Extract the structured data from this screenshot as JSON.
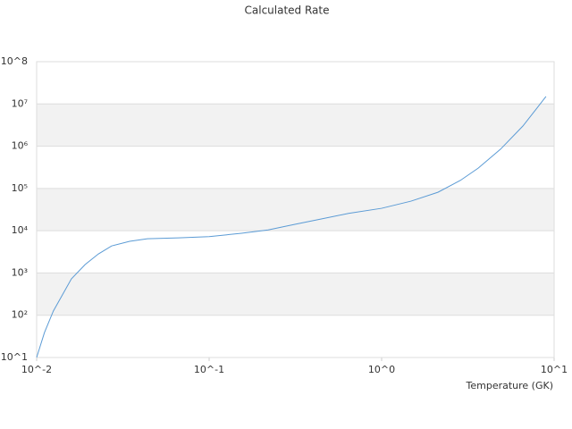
{
  "chart_data": {
    "type": "line",
    "title": "Calculated Rate",
    "x_label": "Temperature (GK)",
    "x_log": true,
    "y_log": true,
    "xlim": [
      0.01,
      10
    ],
    "ylim": [
      10,
      100000000
    ],
    "xticks": [
      {
        "value": 0.01,
        "label": "10^-2"
      },
      {
        "value": 0.1,
        "label": "10^-1"
      },
      {
        "value": 1,
        "label": "10^0"
      },
      {
        "value": 10,
        "label": "10^1"
      }
    ],
    "yticks": [
      {
        "value": 10,
        "label": "10^1"
      },
      {
        "value": 100,
        "label": "10²"
      },
      {
        "value": 1000,
        "label": "10³"
      },
      {
        "value": 10000,
        "label": "10⁴"
      },
      {
        "value": 100000,
        "label": "10⁵"
      },
      {
        "value": 1000000,
        "label": "10⁶"
      },
      {
        "value": 10000000,
        "label": "10⁷"
      },
      {
        "value": 100000000,
        "label": "10^8"
      }
    ],
    "grid": true,
    "band_color": "#f2f2f2",
    "x": [
      0.01,
      0.0111,
      0.0125,
      0.0159,
      0.0191,
      0.0228,
      0.0272,
      0.0346,
      0.0439,
      0.0667,
      0.1,
      0.154,
      0.22,
      0.314,
      0.45,
      0.643,
      1,
      1.48,
      2.12,
      2.86,
      3.63,
      4.89,
      6.59,
      7.88,
      8.97
    ],
    "series": [
      {
        "color": "#5b9bd5",
        "values": [
          10,
          39,
          126,
          724,
          1585,
          2818,
          4365,
          5623,
          6457,
          6760,
          7244,
          8710,
          10470,
          14125,
          19055,
          25700,
          33900,
          50100,
          81300,
          155000,
          302000,
          850000,
          3000000,
          7600000,
          15000000
        ]
      }
    ]
  }
}
